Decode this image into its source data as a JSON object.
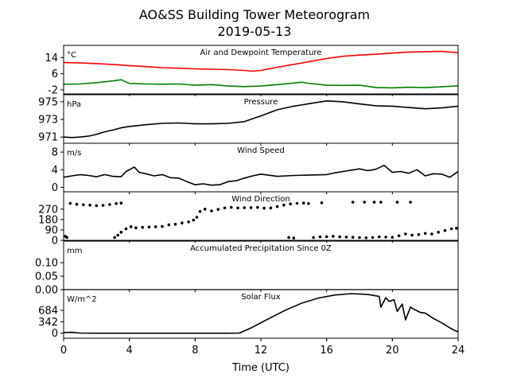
{
  "figure": {
    "title_line1": "AO&SS Building Tower Meteorogram",
    "title_line2": "2019-05-13",
    "xlabel": "Time (UTC)",
    "x_ticks": [
      "0",
      "4",
      "8",
      "12",
      "16",
      "20",
      "24"
    ]
  },
  "chart_data": [
    {
      "type": "line",
      "title": "Air and Dewpoint Temperature",
      "unit": "°C",
      "xlim": [
        0,
        24
      ],
      "ylim": [
        -4,
        20
      ],
      "y_ticks": [
        14,
        6,
        -2
      ],
      "series": [
        {
          "color": "#ff0000",
          "x": [
            0,
            1,
            2,
            3,
            4,
            5,
            6,
            7,
            8,
            9,
            10,
            11,
            11.5,
            12,
            13,
            14,
            15,
            16,
            17,
            18,
            19,
            20,
            21,
            22,
            23,
            24
          ],
          "y": [
            11.5,
            11.3,
            11,
            10.5,
            10,
            9.5,
            9,
            8.7,
            8.4,
            8.2,
            8,
            7.6,
            7.2,
            7.6,
            9.2,
            10.6,
            12,
            13.5,
            14.6,
            15.2,
            15.6,
            16.2,
            16.7,
            16.9,
            17,
            16.4
          ]
        },
        {
          "color": "#008000",
          "x": [
            0,
            1,
            2,
            3,
            3.5,
            4,
            5,
            6,
            7,
            8,
            9,
            10,
            11,
            12,
            13,
            14,
            14.5,
            15,
            16,
            17,
            18,
            19,
            20,
            21,
            22,
            23,
            24
          ],
          "y": [
            0.8,
            0.9,
            1.6,
            2.4,
            3,
            1.2,
            0.9,
            0.8,
            0.9,
            0.3,
            0.6,
            -0.1,
            -0.4,
            -0.1,
            0.6,
            1.4,
            1.8,
            1.1,
            0.3,
            0.2,
            0.3,
            -0.8,
            -1,
            -0.7,
            -0.9,
            -0.5,
            0
          ]
        }
      ]
    },
    {
      "type": "line",
      "title": "Pressure",
      "unit": "hPa",
      "xlim": [
        0,
        24
      ],
      "ylim": [
        970.3,
        975.8
      ],
      "y_ticks": [
        975,
        973,
        971
      ],
      "series": [
        {
          "color": "#000000",
          "x": [
            0,
            0.5,
            1,
            1.5,
            2,
            2.5,
            3,
            3.5,
            4,
            5,
            6,
            7,
            8,
            9,
            10,
            11,
            12,
            13,
            14,
            15,
            16,
            17,
            18,
            19,
            20,
            21,
            22,
            23,
            24
          ],
          "y": [
            971,
            970.95,
            971,
            971.1,
            971.3,
            971.6,
            971.8,
            972.05,
            972.2,
            972.4,
            972.55,
            972.6,
            972.5,
            972.5,
            972.55,
            972.75,
            973.4,
            974.1,
            974.5,
            974.8,
            975.1,
            975.0,
            974.75,
            974.55,
            974.5,
            974.35,
            974.2,
            974.3,
            974.5
          ]
        }
      ]
    },
    {
      "type": "line",
      "title": "Wind Speed",
      "unit": "m/s",
      "xlim": [
        0,
        24
      ],
      "ylim": [
        -1,
        10
      ],
      "y_ticks": [
        8,
        4,
        0
      ],
      "series": [
        {
          "color": "#000000",
          "x": [
            0,
            0.5,
            1,
            1.5,
            2,
            2.5,
            3,
            3.5,
            3.8,
            4.3,
            4.6,
            5,
            5.5,
            6,
            6.5,
            7,
            7.5,
            8,
            8.5,
            9,
            9.5,
            10,
            10.5,
            11,
            11.5,
            12,
            13,
            14,
            15,
            16,
            16.5,
            17,
            17.5,
            18,
            18.5,
            19,
            19.5,
            20,
            20.5,
            21,
            21.5,
            22,
            22.5,
            23,
            23.5,
            24
          ],
          "y": [
            2.3,
            2.6,
            2.9,
            2.7,
            2.4,
            2.9,
            2.5,
            2.4,
            3.6,
            4.6,
            3.4,
            3.1,
            2.6,
            2.9,
            2.2,
            2.1,
            1.3,
            0.6,
            0.8,
            0.5,
            0.6,
            1.3,
            1.5,
            2.1,
            2.6,
            3.0,
            2.5,
            2.7,
            2.8,
            2.9,
            3.3,
            3.6,
            3.9,
            4.2,
            3.8,
            4.1,
            5.0,
            3.4,
            3.6,
            3.2,
            4.0,
            2.6,
            3.1,
            3.0,
            2.3,
            3.6
          ]
        }
      ]
    },
    {
      "type": "scatter",
      "title": "Wind Direction",
      "unit": "",
      "xlim": [
        0,
        24
      ],
      "ylim": [
        0,
        420
      ],
      "y_ticks": [
        270,
        180,
        90,
        0
      ],
      "series": [
        {
          "color": "#000000",
          "x": [
            0.1,
            0.2,
            0.4,
            0.8,
            1.2,
            1.6,
            2.0,
            2.4,
            2.8,
            3.2,
            3.5,
            3.1,
            3.3,
            3.5,
            3.8,
            4.1,
            4.4,
            4.8,
            5.2,
            5.6,
            6.0,
            6.4,
            6.8,
            7.2,
            7.6,
            7.9,
            8.1,
            8.3,
            8.6,
            9.0,
            9.4,
            9.8,
            10.2,
            10.6,
            11.0,
            11.4,
            11.8,
            12.2,
            12.6,
            13.0,
            13.4,
            13.8,
            14.2,
            14.6,
            14.9,
            15.7,
            17.6,
            18.3,
            18.9,
            19.3,
            20.3,
            21.1,
            13.7,
            14.0,
            15.2,
            15.6,
            16.0,
            16.4,
            16.8,
            17.2,
            17.6,
            18.0,
            18.4,
            18.8,
            19.2,
            19.6,
            20.0,
            20.4,
            20.8,
            21.2,
            21.6,
            22.0,
            22.4,
            22.8,
            23.2,
            23.6,
            23.9
          ],
          "y": [
            35,
            25,
            320,
            312,
            308,
            305,
            300,
            302,
            310,
            318,
            322,
            25,
            45,
            70,
            100,
            118,
            108,
            112,
            115,
            118,
            120,
            135,
            140,
            150,
            160,
            175,
            200,
            250,
            270,
            255,
            268,
            280,
            285,
            280,
            282,
            283,
            285,
            278,
            280,
            292,
            305,
            315,
            320,
            322,
            318,
            325,
            330,
            330,
            330,
            330,
            330,
            330,
            25,
            20,
            25,
            30,
            32,
            35,
            30,
            28,
            26,
            24,
            22,
            25,
            30,
            28,
            26,
            40,
            55,
            45,
            50,
            60,
            55,
            70,
            85,
            100,
            105
          ]
        }
      ]
    },
    {
      "type": "line",
      "title": "Accumulated Precipitation Since 0Z",
      "unit": "mm",
      "xlim": [
        0,
        24
      ],
      "ylim": [
        0,
        0.18
      ],
      "y_ticks": [
        "0.10",
        "0.05",
        "0.00"
      ],
      "series": [
        {
          "color": "#000000",
          "x": [
            0,
            24
          ],
          "y": [
            0,
            0
          ]
        }
      ]
    },
    {
      "type": "line",
      "title": "Solar Flux",
      "unit": "W/m^2",
      "xlim": [
        0,
        24
      ],
      "ylim": [
        -150,
        1300
      ],
      "y_ticks": [
        684,
        342,
        0
      ],
      "series": [
        {
          "color": "#000000",
          "x": [
            0,
            0.5,
            1,
            2,
            4,
            6,
            8,
            10,
            10.7,
            11.5,
            12.5,
            13.5,
            14.5,
            15.5,
            16.5,
            17.5,
            18.5,
            19.2,
            19.3,
            19.6,
            19.8,
            20.1,
            20.3,
            20.6,
            20.8,
            21.1,
            21.3,
            21.7,
            22,
            22.5,
            23,
            23.5,
            23.8,
            24
          ],
          "y": [
            20,
            25,
            5,
            0,
            0,
            0,
            0,
            0,
            5,
            180,
            440,
            690,
            900,
            1050,
            1140,
            1180,
            1160,
            1100,
            780,
            1060,
            950,
            1000,
            650,
            870,
            400,
            780,
            720,
            620,
            600,
            440,
            310,
            160,
            80,
            40
          ]
        }
      ]
    }
  ]
}
